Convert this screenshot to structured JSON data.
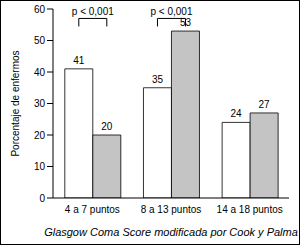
{
  "chart_data": {
    "type": "bar",
    "categories": [
      "4 a 7 puntos",
      "8 a 13 puntos",
      "14 a 18 puntos"
    ],
    "series": [
      {
        "color": "#ffffff",
        "values": [
          41,
          35,
          24
        ]
      },
      {
        "color": "#c4c4c4",
        "values": [
          20,
          53,
          27
        ]
      }
    ],
    "xlabel": "Glasgow Coma Score modificada por Cook y Palma",
    "ylabel": "Porcentaje de enfermos",
    "ylim": [
      0,
      60
    ],
    "yticks": [
      0,
      10,
      20,
      30,
      40,
      50,
      60
    ],
    "data_labels": true,
    "annotations": [
      {
        "text": "p < 0,001",
        "category": "4 a 7 puntos",
        "y": 57
      },
      {
        "text": "p < 0,001",
        "category": "8 a 13 puntos",
        "y": 57
      }
    ]
  }
}
